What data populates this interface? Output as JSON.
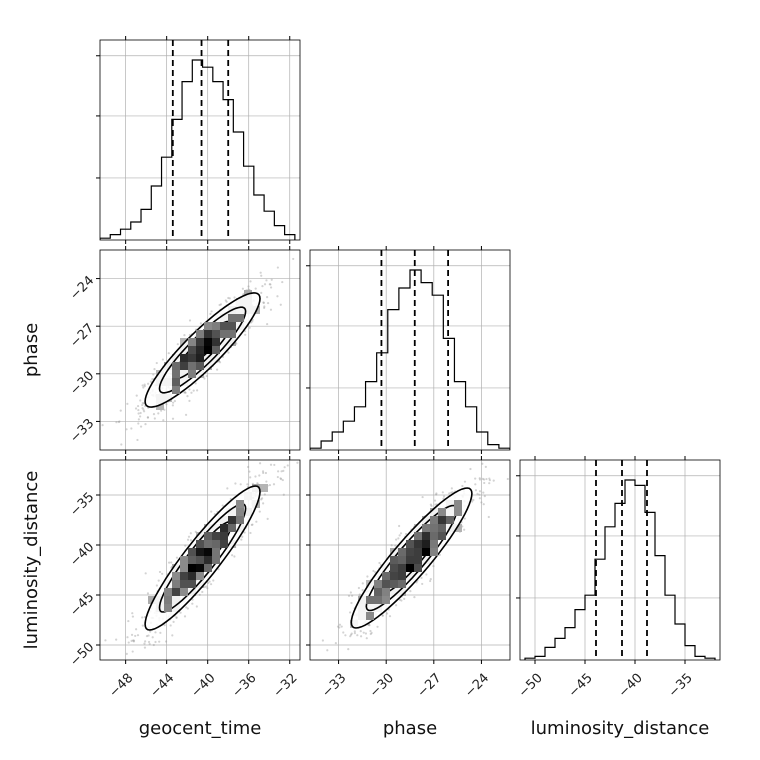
{
  "chart_data": {
    "type": "corner",
    "params": [
      "geocent_time",
      "phase",
      "luminosity_distance"
    ],
    "labels": {
      "x": [
        "geocent_time",
        "phase",
        "luminosity_distance"
      ],
      "y": [
        "phase",
        "luminosity_distance"
      ]
    },
    "ranges": {
      "geocent_time": [
        -50.5,
        -31.0
      ],
      "phase": [
        -34.8,
        -22.2
      ],
      "luminosity_distance": [
        -51.5,
        -31.5
      ]
    },
    "ticks": {
      "geocent_time": [
        -48,
        -44,
        -40,
        -36,
        -32
      ],
      "phase": [
        -33,
        -30,
        -27,
        -24
      ],
      "luminosity_distance": [
        -50,
        -45,
        -40,
        -35
      ]
    },
    "tick_labels": {
      "geocent_time": [
        "−48",
        "−44",
        "−40",
        "−36",
        "−32"
      ],
      "phase": [
        "−33",
        "−30",
        "−27",
        "−24"
      ],
      "luminosity_distance": [
        "−50",
        "−45",
        "−40",
        "−35"
      ]
    },
    "quantiles": {
      "geocent_time": [
        -43.4,
        -40.6,
        -38.0
      ],
      "phase": [
        -30.3,
        -28.2,
        -26.1
      ],
      "luminosity_distance": [
        -43.9,
        -41.3,
        -38.8
      ]
    },
    "histograms": {
      "geocent_time": {
        "edges": [
          -50.5,
          -49.5,
          -48.5,
          -47.5,
          -46.5,
          -45.5,
          -44.5,
          -43.5,
          -42.5,
          -41.5,
          -40.5,
          -39.5,
          -38.5,
          -37.5,
          -36.5,
          -35.5,
          -34.5,
          -33.5,
          -32.5,
          -31.5
        ],
        "values": [
          1,
          3,
          6,
          10,
          17,
          30,
          46,
          67,
          88,
          100,
          96,
          88,
          78,
          60,
          41,
          25,
          16,
          8,
          3
        ]
      },
      "phase": {
        "edges": [
          -34.8,
          -34.1,
          -33.4,
          -32.7,
          -32.0,
          -31.3,
          -30.6,
          -29.9,
          -29.2,
          -28.5,
          -27.8,
          -27.1,
          -26.4,
          -25.7,
          -25.0,
          -24.3,
          -23.6,
          -22.9,
          -22.2
        ],
        "values": [
          1,
          5,
          10,
          16,
          24,
          38,
          54,
          78,
          90,
          100,
          93,
          86,
          62,
          38,
          24,
          10,
          3,
          1
        ]
      },
      "luminosity_distance": {
        "edges": [
          -51.0,
          -50.0,
          -49.0,
          -48.0,
          -47.0,
          -46.0,
          -45.0,
          -44.0,
          -43.0,
          -42.0,
          -41.0,
          -40.0,
          -39.0,
          -38.0,
          -37.0,
          -36.0,
          -35.0,
          -34.0,
          -33.0,
          -32.0
        ],
        "values": [
          1,
          2,
          7,
          12,
          18,
          28,
          36,
          56,
          74,
          87,
          100,
          97,
          82,
          58,
          36,
          20,
          8,
          2,
          1
        ]
      }
    },
    "scatter": [
      {
        "x": "geocent_time",
        "y": "phase",
        "mean": [
          -40.5,
          -28.5
        ],
        "sd": [
          2.8,
          1.8
        ],
        "rho": 0.9
      },
      {
        "x": "geocent_time",
        "y": "luminosity_distance",
        "mean": [
          -40.5,
          -41.3
        ],
        "sd": [
          2.8,
          3.6
        ],
        "rho": 0.92
      },
      {
        "x": "phase",
        "y": "luminosity_distance",
        "mean": [
          -28.4,
          -41.3
        ],
        "sd": [
          1.9,
          3.5
        ],
        "rho": 0.92
      }
    ],
    "grid": true,
    "colors": {
      "line": "#000000",
      "grid": "#b0b0b0",
      "points": "#9e9e9e"
    }
  }
}
